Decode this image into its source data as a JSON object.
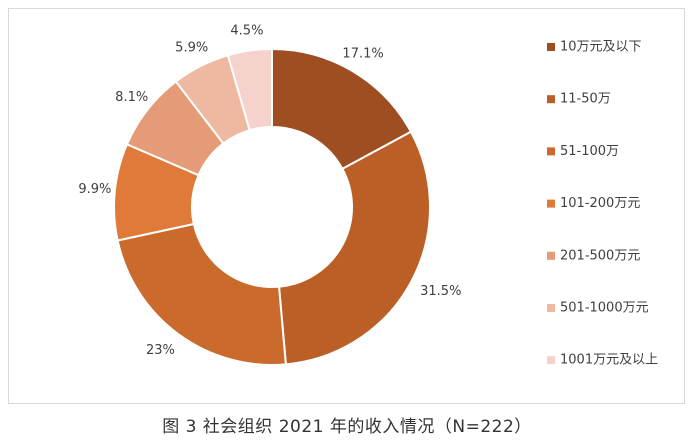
{
  "chart_data": {
    "type": "donut",
    "title": "",
    "categories": [
      "10万元及以下",
      "11-50万",
      "51-100万",
      "101-200万元",
      "201-500万元",
      "501-1000万元",
      "1001万元及以上"
    ],
    "values": [
      17.1,
      31.5,
      23,
      9.9,
      8.1,
      5.9,
      4.5
    ],
    "data_labels": [
      "17.1%",
      "31.5%",
      "23%",
      "9.9%",
      "8.1%",
      "5.9%",
      "4.5%"
    ],
    "colors": [
      "#9e4e21",
      "#bb5f27",
      "#cb6a2d",
      "#e07a38",
      "#e59a78",
      "#eeb8a1",
      "#f5d2cb"
    ],
    "legend_position": "right"
  },
  "caption": "图 3 社会组织 2021 年的收入情况（N=222）"
}
